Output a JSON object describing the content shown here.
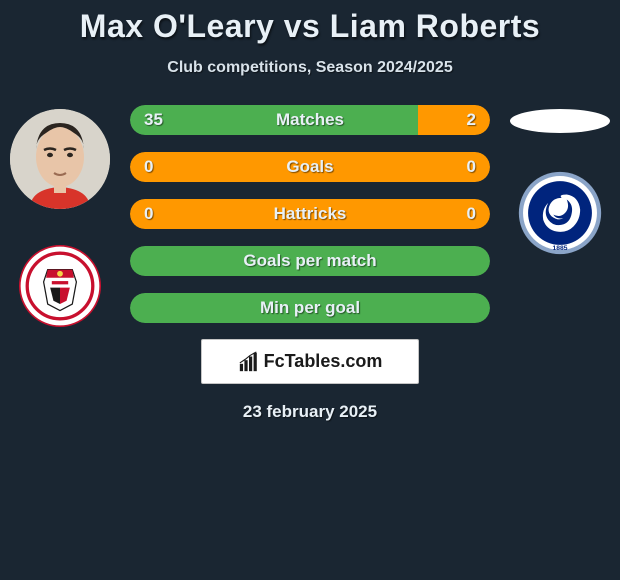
{
  "title": {
    "player1": "Max O'Leary",
    "vs": "vs",
    "player2": "Liam Roberts"
  },
  "subtitle": "Club competitions, Season 2024/2025",
  "colors": {
    "p1": "#4caf50",
    "p2": "#ff9800",
    "neutral": "#4caf50",
    "bg": "#1a2632"
  },
  "stats": [
    {
      "label": "Matches",
      "v1": "35",
      "v2": "2",
      "p1_pct": 80,
      "p2_pct": 20,
      "show_vals": true
    },
    {
      "label": "Goals",
      "v1": "0",
      "v2": "0",
      "p1_pct": 100,
      "p2_pct": 0,
      "show_vals": true,
      "single_color": "#ff9800"
    },
    {
      "label": "Hattricks",
      "v1": "0",
      "v2": "0",
      "p1_pct": 100,
      "p2_pct": 0,
      "show_vals": true,
      "single_color": "#ff9800"
    },
    {
      "label": "Goals per match",
      "v1": "",
      "v2": "",
      "p1_pct": 100,
      "p2_pct": 0,
      "show_vals": false,
      "single_color": "#4caf50"
    },
    {
      "label": "Min per goal",
      "v1": "",
      "v2": "",
      "p1_pct": 100,
      "p2_pct": 0,
      "show_vals": false,
      "single_color": "#4caf50"
    }
  ],
  "watermark": "FcTables.com",
  "date": "23 february 2025",
  "typography": {
    "title_fontsize": 32,
    "subtitle_fontsize": 16,
    "bar_fontsize": 17,
    "date_fontsize": 17
  },
  "clubs": {
    "left": {
      "ring_color": "#c8102e",
      "inner_bg": "#ffffff"
    },
    "right": {
      "ring_color": "#8aa4c8",
      "inner_bg": "#00247d",
      "lion_color": "#ffffff"
    }
  }
}
